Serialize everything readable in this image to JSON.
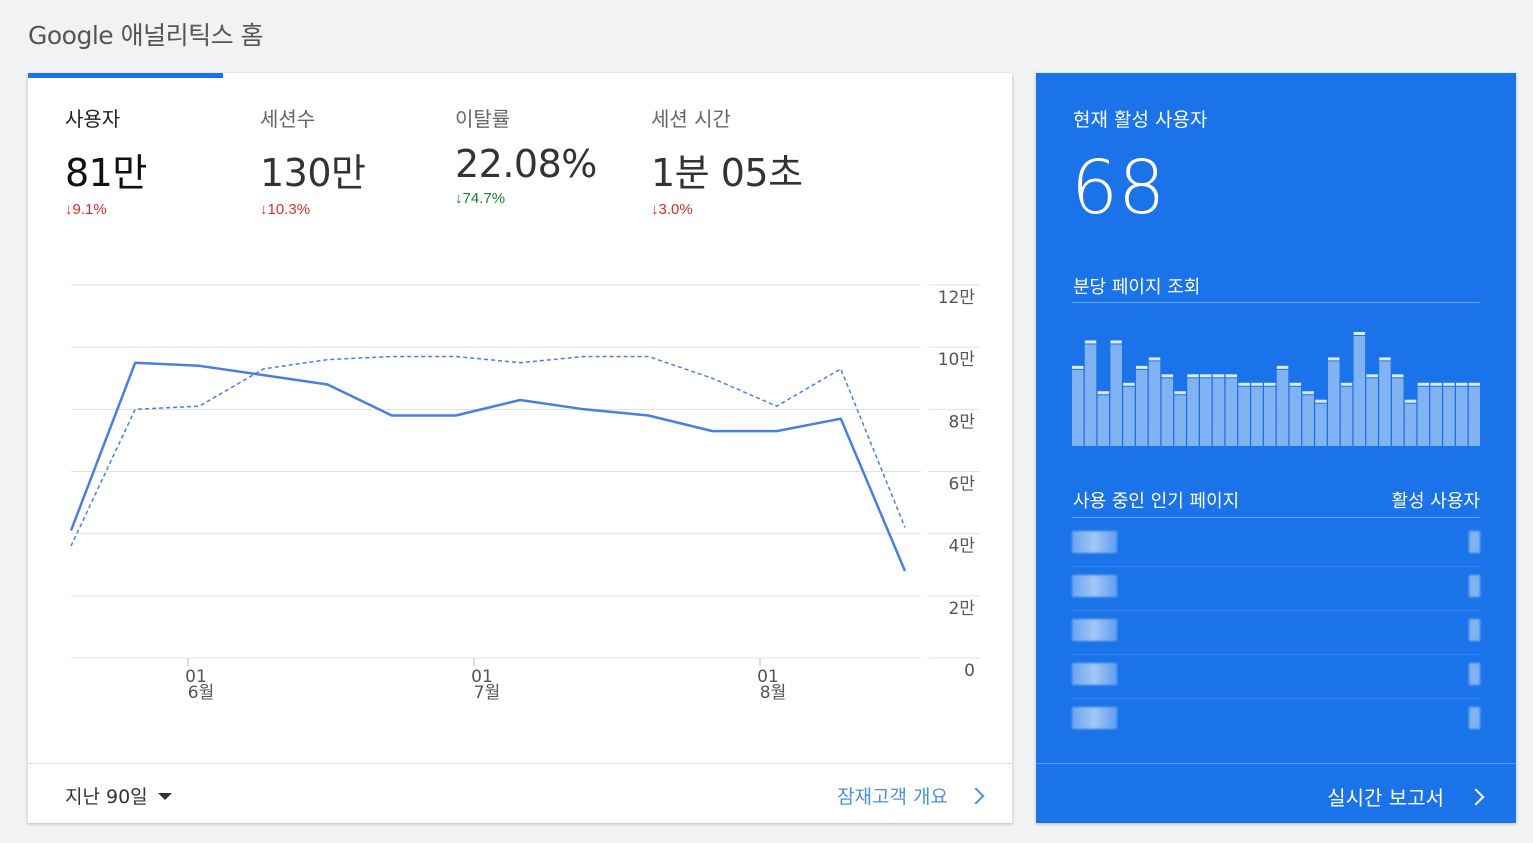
{
  "page": {
    "title": "Google 애널리틱스 홈"
  },
  "metrics": [
    {
      "label": "사용자",
      "value": "81만",
      "delta": "9.1%",
      "direction": "down",
      "color": "#d32f2f"
    },
    {
      "label": "세션수",
      "value": "130만",
      "delta": "10.3%",
      "direction": "down",
      "color": "#d32f2f"
    },
    {
      "label": "이탈률",
      "value": "22.08%",
      "delta": "74.7%",
      "direction": "down",
      "color": "#188038"
    },
    {
      "label": "세션 시간",
      "value": "1분 05초",
      "delta": "3.0%",
      "direction": "down",
      "color": "#d32f2f"
    }
  ],
  "arrow_glyph": "↓",
  "chart_data": {
    "type": "line",
    "y_ticks": [
      "12만",
      "10만",
      "8만",
      "6만",
      "4만",
      "2만",
      "0"
    ],
    "ylim": [
      0,
      120000
    ],
    "x_ticks": [
      {
        "day": "01",
        "month": "6월"
      },
      {
        "day": "01",
        "month": "7월"
      },
      {
        "day": "01",
        "month": "8월"
      }
    ],
    "series": [
      {
        "style": "solid",
        "values": [
          41000,
          95000,
          94000,
          91000,
          88000,
          78000,
          78000,
          83000,
          80000,
          78000,
          73000,
          73000,
          77000,
          28000
        ]
      },
      {
        "style": "dashed",
        "values": [
          36000,
          80000,
          81000,
          93000,
          96000,
          97000,
          97000,
          95000,
          97000,
          97000,
          90000,
          81000,
          93000,
          42000
        ]
      }
    ],
    "colors": {
      "line": "#4a7fe0",
      "grid": "#e0e0e0"
    }
  },
  "footer": {
    "range_label": "지난 90일",
    "link_label": "잠재고객 개요"
  },
  "realtime": {
    "title": "현재 활성 사용자",
    "count": "68",
    "subtitle": "분당 페이지 조회",
    "bar_values": [
      9,
      12,
      6,
      12,
      7,
      9,
      10,
      8,
      6,
      8,
      8,
      8,
      8,
      7,
      7,
      7,
      9,
      7,
      6,
      5,
      10,
      7,
      13,
      8,
      10,
      8,
      5,
      7,
      7,
      7,
      7,
      7
    ],
    "table_header_left": "사용 중인 인기 페이지",
    "table_header_right": "활성 사용자",
    "link_label": "실시간 보고서",
    "color": "#1a73e8"
  }
}
